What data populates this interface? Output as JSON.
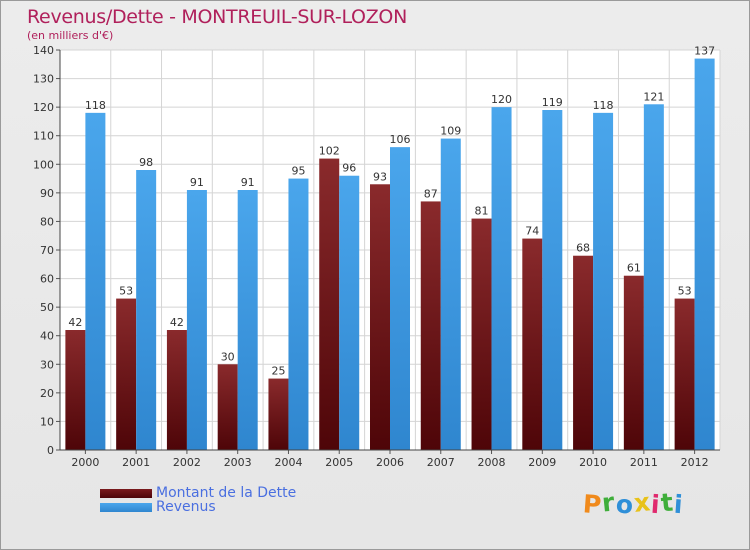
{
  "title": "Revenus/Dette - MONTREUIL-SUR-LOZON",
  "subtitle": "(en milliers d'€)",
  "legend": {
    "dette": "Montant de la Dette",
    "revenus": "Revenus"
  },
  "logo": {
    "text": "Proxiti"
  },
  "colors": {
    "dette": "#6b0f12",
    "revenus": "#3b97e0",
    "title": "#b0205b",
    "legend_text": "#4a6fe0"
  },
  "chart_data": {
    "type": "bar",
    "title": "Revenus/Dette - MONTREUIL-SUR-LOZON",
    "subtitle": "(en milliers d'€)",
    "categories": [
      "2000",
      "2001",
      "2002",
      "2003",
      "2004",
      "2005",
      "2006",
      "2007",
      "2008",
      "2009",
      "2010",
      "2011",
      "2012"
    ],
    "series": [
      {
        "name": "Montant de la Dette",
        "values": [
          42,
          53,
          42,
          30,
          25,
          102,
          93,
          87,
          81,
          74,
          68,
          61,
          53
        ]
      },
      {
        "name": "Revenus",
        "values": [
          118,
          98,
          91,
          91,
          95,
          96,
          106,
          109,
          120,
          119,
          118,
          121,
          137
        ]
      }
    ],
    "ylim": [
      0,
      140
    ],
    "yticks": [
      0,
      10,
      20,
      30,
      40,
      50,
      60,
      70,
      80,
      90,
      100,
      110,
      120,
      130,
      140
    ],
    "grid": true,
    "legend_position": "bottom-left"
  }
}
